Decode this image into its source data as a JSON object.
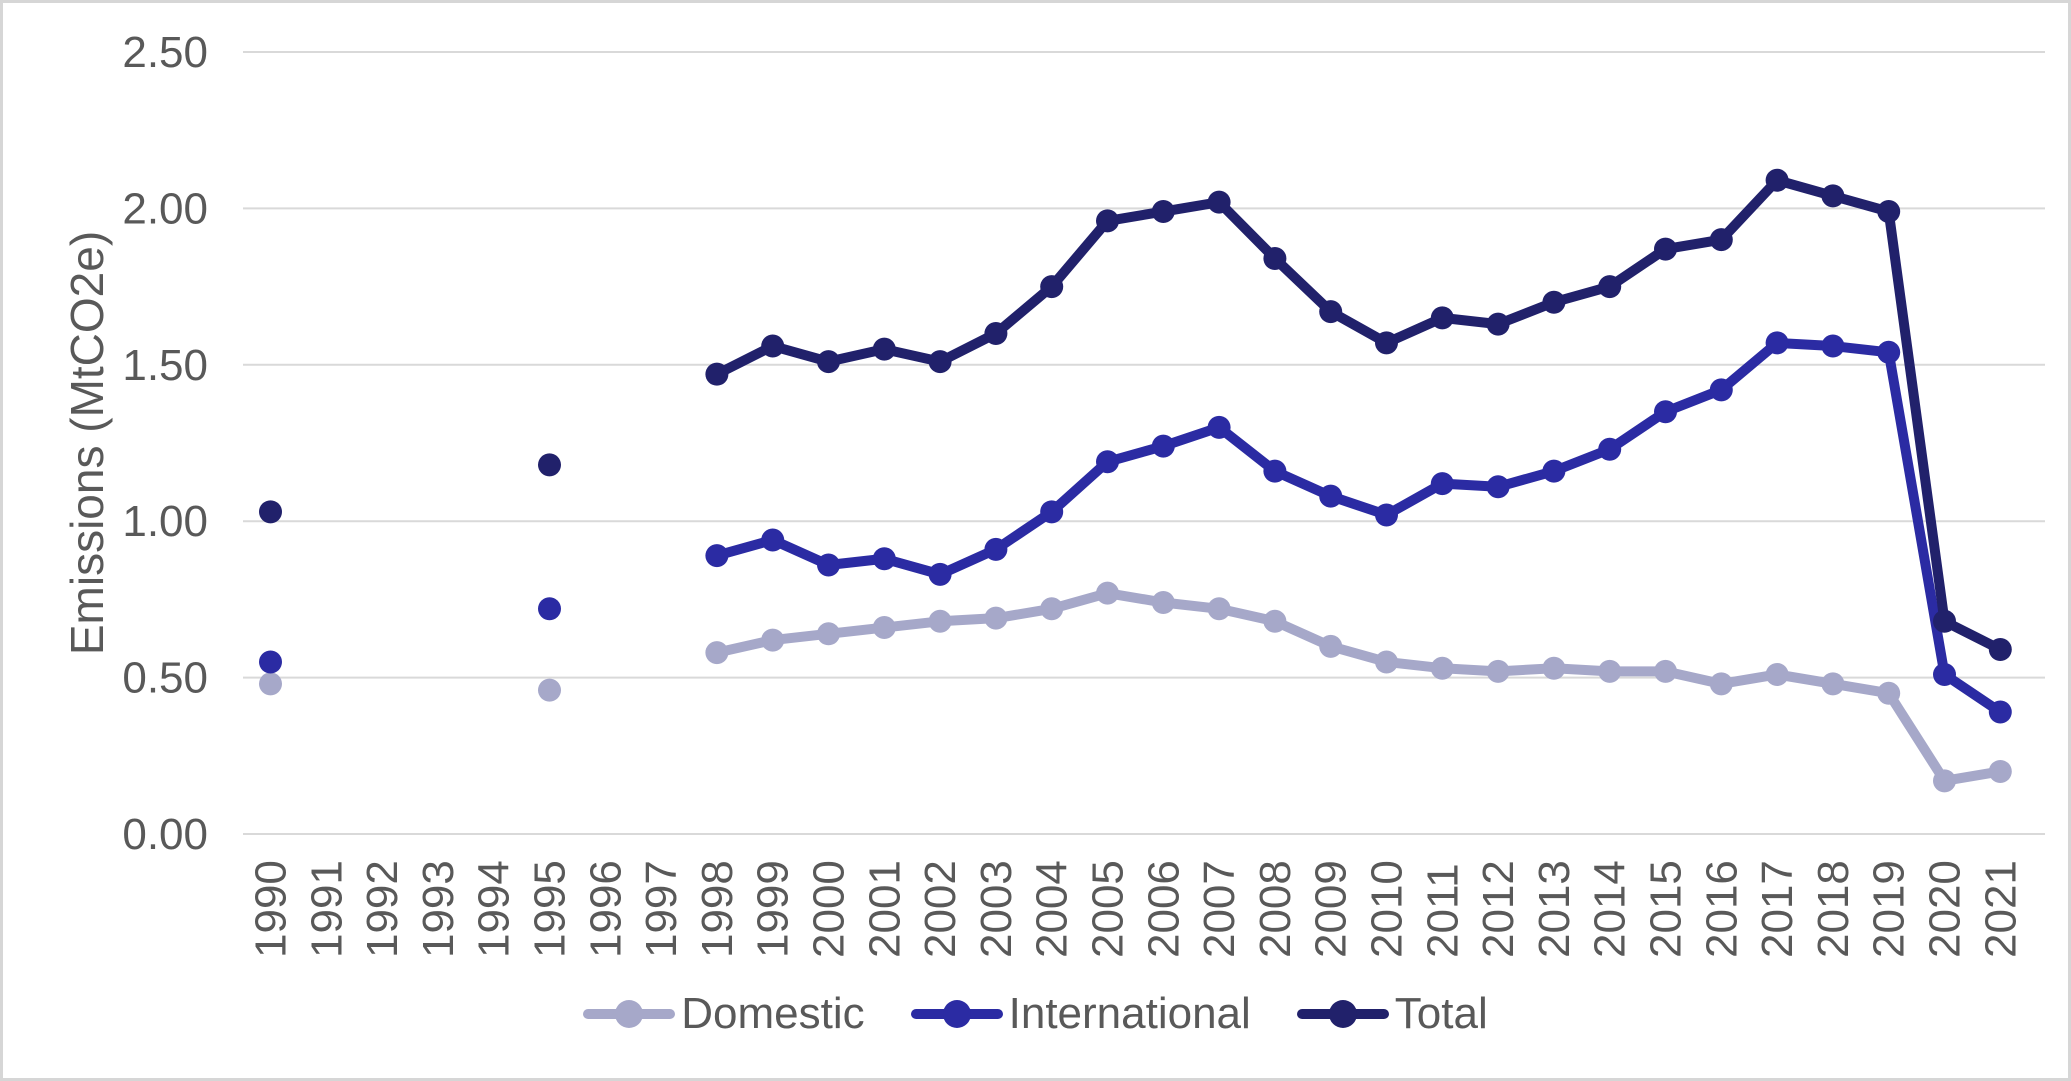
{
  "chart_data": {
    "type": "line",
    "title": "",
    "xlabel": "",
    "ylabel": "Emissions (MtCO2e)",
    "ylim": [
      0,
      2.5
    ],
    "ytick_values": [
      0,
      0.5,
      1.0,
      1.5,
      2.0,
      2.5
    ],
    "ytick_labels": [
      "0.00",
      "0.50",
      "1.00",
      "1.50",
      "2.00",
      "2.50"
    ],
    "categories": [
      "1990",
      "1991",
      "1992",
      "1993",
      "1994",
      "1995",
      "1996",
      "1997",
      "1998",
      "1999",
      "2000",
      "2001",
      "2002",
      "2003",
      "2004",
      "2005",
      "2006",
      "2007",
      "2008",
      "2009",
      "2010",
      "2011",
      "2012",
      "2013",
      "2014",
      "2015",
      "2016",
      "2017",
      "2018",
      "2019",
      "2020",
      "2021"
    ],
    "grid": "horizontal-only",
    "legend_position": "bottom-center",
    "series": [
      {
        "name": "Domestic",
        "color": "#A6A8C9",
        "values": [
          0.48,
          null,
          null,
          null,
          null,
          0.46,
          null,
          null,
          0.58,
          0.62,
          0.64,
          0.66,
          0.68,
          0.69,
          0.72,
          0.77,
          0.74,
          0.72,
          0.68,
          0.6,
          0.55,
          0.53,
          0.52,
          0.53,
          0.52,
          0.52,
          0.48,
          0.51,
          0.48,
          0.45,
          0.17,
          0.2
        ]
      },
      {
        "name": "International",
        "color": "#2B2BA3",
        "values": [
          0.55,
          null,
          null,
          null,
          null,
          0.72,
          null,
          null,
          0.89,
          0.94,
          0.86,
          0.88,
          0.83,
          0.91,
          1.03,
          1.19,
          1.24,
          1.3,
          1.16,
          1.08,
          1.02,
          1.12,
          1.11,
          1.16,
          1.23,
          1.35,
          1.42,
          1.57,
          1.56,
          1.54,
          0.51,
          0.39
        ]
      },
      {
        "name": "Total",
        "color": "#21216B",
        "values": [
          1.03,
          null,
          null,
          null,
          null,
          1.18,
          null,
          null,
          1.47,
          1.56,
          1.51,
          1.55,
          1.51,
          1.6,
          1.75,
          1.96,
          1.99,
          2.02,
          1.84,
          1.67,
          1.57,
          1.65,
          1.63,
          1.7,
          1.75,
          1.87,
          1.9,
          2.09,
          2.04,
          1.99,
          0.68,
          0.59
        ]
      }
    ],
    "colors": {
      "grid": "#D9D9D9",
      "axis_text": "#595959",
      "background": "#FFFFFF",
      "border": "#D6D6D6"
    }
  }
}
